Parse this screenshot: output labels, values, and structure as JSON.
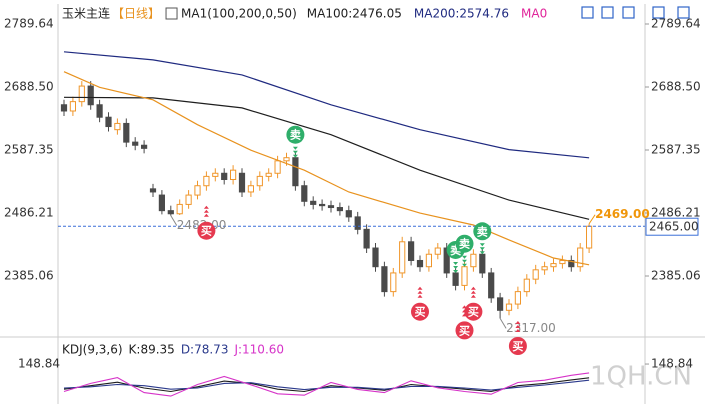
{
  "chart_data": {
    "type": "candlestick",
    "title": "玉米主连",
    "period": "【日线】",
    "indicator": "MA1(100,200,0,50)",
    "ylim": [
      2290.36,
      2812.12
    ],
    "yticks": [
      2789.64,
      {
        "value": 2688.5,
        "label": "2688.50"
      },
      2587.35,
      2486.21,
      2385.06
    ],
    "open": [
      2660,
      2650,
      2665,
      2690,
      2660,
      2640,
      2620,
      2630,
      2600,
      2595,
      2525,
      2515,
      2490,
      2485,
      2500,
      2515,
      2530,
      2545,
      2550,
      2540,
      2550,
      2520,
      2530,
      2545,
      2550,
      2570,
      2575,
      2530,
      2505,
      2500,
      2498,
      2495,
      2490,
      2480,
      2460,
      2430,
      2400,
      2360,
      2390,
      2440,
      2410,
      2400,
      2420,
      2430,
      2390,
      2370,
      2400,
      2420,
      2390,
      2350,
      2330,
      2340,
      2360,
      2380,
      2395,
      2400,
      2405,
      2410,
      2400,
      2430
    ],
    "high": [
      2668,
      2673,
      2698,
      2698,
      2668,
      2648,
      2638,
      2638,
      2608,
      2603,
      2533,
      2523,
      2498,
      2508,
      2523,
      2538,
      2553,
      2558,
      2558,
      2563,
      2558,
      2538,
      2553,
      2558,
      2578,
      2583,
      2583,
      2538,
      2513,
      2508,
      2506,
      2503,
      2498,
      2488,
      2468,
      2438,
      2408,
      2398,
      2448,
      2448,
      2418,
      2428,
      2438,
      2438,
      2398,
      2408,
      2428,
      2428,
      2398,
      2358,
      2348,
      2368,
      2388,
      2403,
      2408,
      2413,
      2418,
      2418,
      2438,
      2469
    ],
    "low": [
      2642,
      2642,
      2657,
      2652,
      2632,
      2617,
      2612,
      2592,
      2587,
      2582,
      2512,
      2484,
      2482,
      2483,
      2493,
      2508,
      2522,
      2537,
      2532,
      2532,
      2512,
      2512,
      2522,
      2537,
      2542,
      2562,
      2522,
      2497,
      2492,
      2490,
      2487,
      2482,
      2472,
      2452,
      2422,
      2392,
      2352,
      2352,
      2382,
      2402,
      2392,
      2392,
      2412,
      2382,
      2362,
      2362,
      2392,
      2382,
      2342,
      2317,
      2322,
      2332,
      2352,
      2372,
      2387,
      2392,
      2397,
      2392,
      2392,
      2422
    ],
    "close": [
      2650,
      2665,
      2690,
      2660,
      2640,
      2625,
      2630,
      2600,
      2595,
      2590,
      2520,
      2490,
      2485,
      2500,
      2515,
      2530,
      2545,
      2550,
      2540,
      2555,
      2520,
      2530,
      2545,
      2550,
      2570,
      2575,
      2530,
      2505,
      2500,
      2498,
      2495,
      2490,
      2480,
      2460,
      2430,
      2400,
      2360,
      2390,
      2440,
      2410,
      2400,
      2420,
      2430,
      2390,
      2370,
      2400,
      2420,
      2390,
      2350,
      2330,
      2340,
      2360,
      2380,
      2395,
      2400,
      2405,
      2410,
      2400,
      2430,
      2465
    ],
    "up_color": "#f0962a",
    "down_color": "#4a4a4a",
    "series": [
      {
        "name": "MA100:2476.05",
        "color": "#1e1e1e",
        "x": [
          0,
          10,
          20,
          30,
          40,
          50,
          59
        ],
        "values": [
          2672,
          2671,
          2655,
          2612,
          2555,
          2507,
          2476.05
        ]
      },
      {
        "name": "MA200:2574.76",
        "color": "#1f2a80",
        "x": [
          0,
          10,
          20,
          30,
          40,
          50,
          59
        ],
        "values": [
          2745,
          2732,
          2708,
          2660,
          2620,
          2588,
          2574.76
        ]
      },
      {
        "name": "MA0",
        "color": "#e8921e",
        "legend_color": "#e0249a",
        "x": [
          0,
          4,
          10,
          15,
          21,
          27,
          32,
          40,
          46,
          50,
          55,
          59
        ],
        "values": [
          2713,
          2688,
          2668,
          2628,
          2587,
          2555,
          2520,
          2486,
          2467,
          2443,
          2414,
          2403
        ]
      }
    ],
    "last_price": {
      "value": 2465,
      "label": "2465.00"
    },
    "extremes": [
      {
        "index": 59,
        "value": 2469,
        "label": "2469.00",
        "color": "#f0960a"
      },
      {
        "index": 12,
        "value": 2482,
        "label": "2482.00",
        "color": "#888888"
      },
      {
        "index": 49,
        "value": 2317,
        "label": "2317.00",
        "color": "#888888"
      }
    ],
    "signals": [
      {
        "index": 26,
        "label": "卖",
        "color": "#2fae6a"
      },
      {
        "index": 44,
        "label": "卖",
        "color": "#2fae6a"
      },
      {
        "index": 45,
        "label": "卖",
        "color": "#2fae6a"
      },
      {
        "index": 47,
        "label": "卖",
        "color": "#2fae6a"
      },
      {
        "index": 16,
        "label": "买",
        "color": "#e5394f"
      },
      {
        "index": 40,
        "label": "买",
        "color": "#e5394f"
      },
      {
        "index": 45,
        "label": "买",
        "color": "#e5394f"
      },
      {
        "index": 46,
        "label": "买",
        "color": "#e5394f"
      },
      {
        "index": 51,
        "label": "买",
        "color": "#e5394f"
      }
    ],
    "kdj": {
      "title": "KDJ(9,3,6)",
      "ylim": [
        -20,
        240
      ],
      "yticks": [
        148.84
      ],
      "x": [
        0,
        3,
        6,
        9,
        12,
        15,
        18,
        21,
        24,
        27,
        30,
        33,
        36,
        39,
        42,
        45,
        48,
        51,
        54,
        57,
        59
      ],
      "series": [
        {
          "name": "K:89.35",
          "color": "#1e1e1e",
          "values": [
            40,
            55,
            70,
            45,
            30,
            50,
            75,
            65,
            40,
            30,
            55,
            45,
            35,
            60,
            50,
            40,
            30,
            55,
            65,
            80,
            89.35
          ]
        },
        {
          "name": "D:78.73",
          "color": "#2b3a8c",
          "values": [
            45,
            50,
            60,
            55,
            40,
            45,
            65,
            68,
            50,
            38,
            48,
            48,
            40,
            52,
            52,
            45,
            36,
            48,
            58,
            70,
            78.73
          ]
        },
        {
          "name": "J:110.60",
          "color": "#d633c8",
          "values": [
            30,
            65,
            90,
            25,
            10,
            60,
            95,
            59,
            20,
            14,
            69,
            39,
            25,
            76,
            46,
            30,
            18,
            69,
            79,
            100,
            110.6
          ]
        }
      ]
    },
    "watermark": "1QH.CN"
  }
}
